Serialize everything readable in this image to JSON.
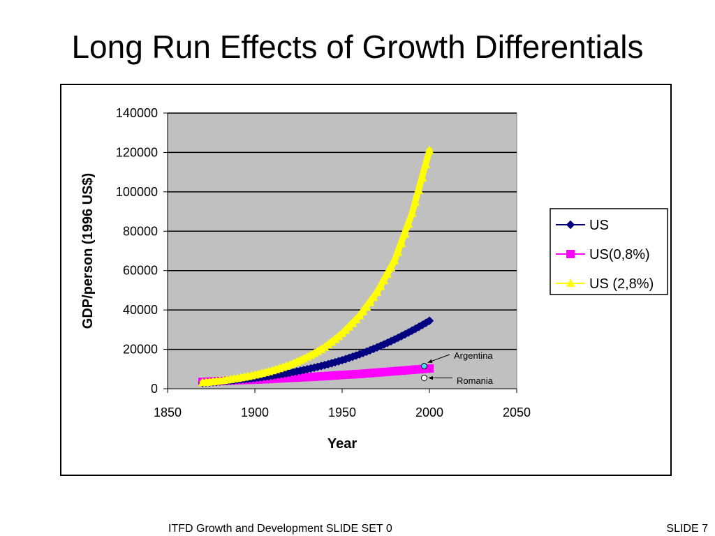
{
  "slide": {
    "title": "Long Run Effects of Growth Differentials",
    "footer_left": "ITFD Growth and Development    SLIDE SET 0",
    "footer_right": "SLIDE 7"
  },
  "chart_data": {
    "type": "scatter",
    "xlabel": "Year",
    "ylabel": "GDP/person (1996 US$)",
    "xlim": [
      1850,
      2050
    ],
    "ylim": [
      0,
      140000
    ],
    "xticks": [
      1850,
      1900,
      1950,
      2000,
      2050
    ],
    "yticks": [
      0,
      20000,
      40000,
      60000,
      80000,
      100000,
      120000,
      140000
    ],
    "grid": "horizontal",
    "legend_position": "right",
    "plot_background": "#c0c0c0",
    "series": [
      {
        "name": "US",
        "marker": "diamond",
        "color": "#000080",
        "x": [
          1870,
          1880,
          1890,
          1900,
          1910,
          1920,
          1930,
          1940,
          1950,
          1960,
          1970,
          1980,
          1990,
          2000
        ],
        "y": [
          2900,
          3600,
          4400,
          5400,
          6600,
          8100,
          9900,
          12000,
          14500,
          17500,
          21000,
          25000,
          29500,
          34500
        ]
      },
      {
        "name": "US(0,8%)",
        "marker": "square",
        "color": "#ff00ff",
        "x": [
          1870,
          1880,
          1890,
          1900,
          1910,
          1920,
          1930,
          1940,
          1950,
          1960,
          1970,
          1980,
          1990,
          2000
        ],
        "y": [
          3500,
          3900,
          4300,
          4600,
          5000,
          5500,
          5900,
          6400,
          7000,
          7500,
          8200,
          8900,
          9600,
          10300
        ]
      },
      {
        "name": "US (2,8%)",
        "marker": "triangle",
        "color": "#ffff00",
        "x": [
          1870,
          1880,
          1890,
          1900,
          1910,
          1920,
          1930,
          1940,
          1950,
          1960,
          1970,
          1980,
          1990,
          2000
        ],
        "y": [
          3000,
          3900,
          5200,
          6900,
          9100,
          12000,
          16000,
          21000,
          28000,
          37000,
          49000,
          65000,
          89000,
          121000
        ]
      }
    ],
    "points": [
      {
        "label": "Argentina",
        "x": 1997,
        "y": 11500,
        "color": "#40e0f0"
      },
      {
        "label": "Romania",
        "x": 1997,
        "y": 5500,
        "color": "#ffffff"
      }
    ]
  }
}
